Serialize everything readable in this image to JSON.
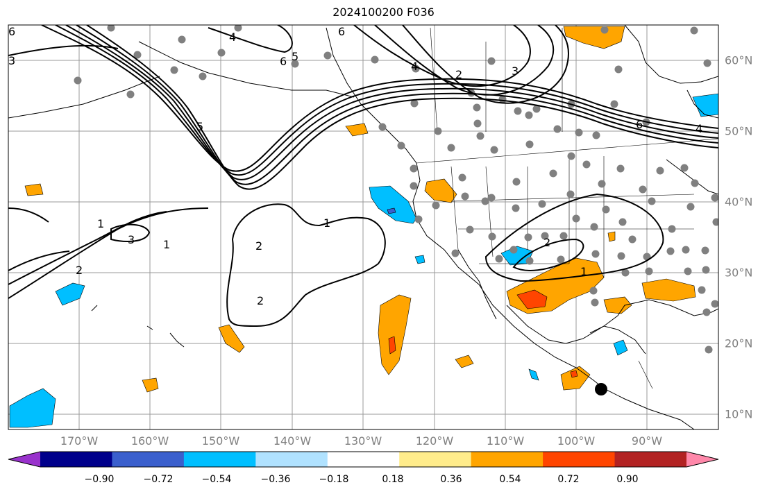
{
  "title": "2024100200 F036",
  "map": {
    "lon_labels": [
      "170°W",
      "160°W",
      "150°W",
      "140°W",
      "130°W",
      "120°W",
      "110°W",
      "100°W",
      "90°W"
    ],
    "lat_labels": [
      "60°N",
      "50°N",
      "40°N",
      "30°N",
      "20°N",
      "10°N"
    ],
    "contour_labels": [
      "6",
      "5",
      "4",
      "3",
      "2",
      "1",
      "6",
      "4",
      "2",
      "1",
      "3",
      "2",
      "1",
      "2",
      "2",
      "1",
      "6",
      "4",
      "3",
      "5",
      "6"
    ]
  },
  "colorbar": {
    "tick_labels": [
      "−0.90",
      "−0.72",
      "−0.54",
      "−0.36",
      "−0.18",
      "0.18",
      "0.36",
      "0.54",
      "0.72",
      "0.90"
    ],
    "colors": [
      "#9932CC",
      "#00008B",
      "#3A5FCD",
      "#00BFFF",
      "#B0E2FF",
      "#FFFFFF",
      "#FFEC8B",
      "#FFA500",
      "#FF4500",
      "#B22222",
      "#FF88AA"
    ]
  }
}
